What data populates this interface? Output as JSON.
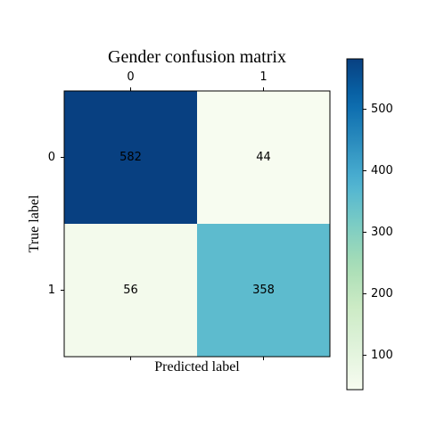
{
  "chart_data": {
    "type": "heatmap",
    "title": "Gender confusion matrix",
    "xlabel": "Predicted label",
    "ylabel": "True label",
    "x_categories": [
      "0",
      "1"
    ],
    "y_categories": [
      "0",
      "1"
    ],
    "values": [
      [
        582,
        44
      ],
      [
        56,
        358
      ]
    ],
    "colormap": "GnBu",
    "colorbar": {
      "ticks": [
        100,
        200,
        300,
        400,
        500
      ],
      "tick_labels": [
        "100",
        "200",
        "300",
        "400",
        "500"
      ],
      "range": [
        44,
        582
      ]
    },
    "x_ticks_position": "top",
    "grid": false
  }
}
